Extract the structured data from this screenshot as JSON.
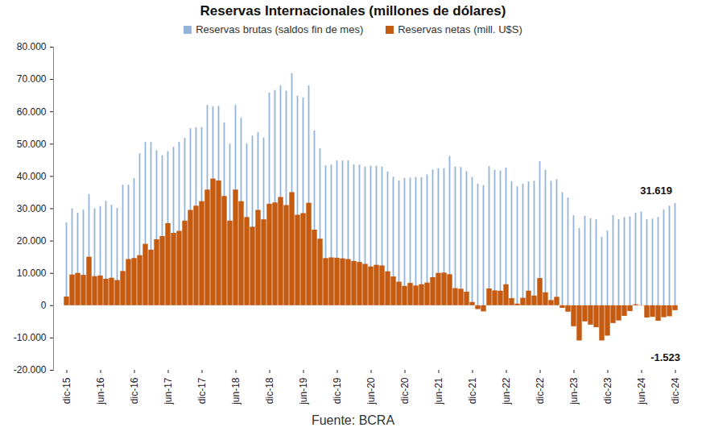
{
  "chart_data": {
    "type": "bar",
    "title": "Reservas Internacionales (millones de dólares)",
    "caption": "Fuente: BCRA",
    "categories": [
      "dic-15",
      null,
      null,
      null,
      null,
      null,
      "jun-16",
      null,
      null,
      null,
      null,
      null,
      "dic-16",
      null,
      null,
      null,
      null,
      null,
      "jun-17",
      null,
      null,
      null,
      null,
      null,
      "dic-17",
      null,
      null,
      null,
      null,
      null,
      "jun-18",
      null,
      null,
      null,
      null,
      null,
      "dic-18",
      null,
      null,
      null,
      null,
      null,
      "jun-19",
      null,
      null,
      null,
      null,
      null,
      "dic-19",
      null,
      null,
      null,
      null,
      null,
      "jun-20",
      null,
      null,
      null,
      null,
      null,
      "dic-20",
      null,
      null,
      null,
      null,
      null,
      "jun-21",
      null,
      null,
      null,
      null,
      null,
      "dic-21",
      null,
      null,
      null,
      null,
      null,
      "jun-22",
      null,
      null,
      null,
      null,
      null,
      "dic-22",
      null,
      null,
      null,
      null,
      null,
      "jun-23",
      null,
      null,
      null,
      null,
      null,
      "dic-23",
      null,
      null,
      null,
      null,
      null,
      "jun-24",
      null,
      null,
      null,
      null,
      null,
      "dic-24"
    ],
    "series": [
      {
        "name": "Reservas brutas (saldos fin de mes)",
        "color": "#95b3d7",
        "values": [
          25600,
          30000,
          28600,
          29600,
          34400,
          30000,
          30700,
          32300,
          31100,
          30100,
          37300,
          37300,
          39300,
          47000,
          50500,
          50500,
          48000,
          46400,
          47700,
          49000,
          50600,
          51800,
          54800,
          55100,
          55100,
          62000,
          61600,
          61700,
          56600,
          50000,
          62000,
          58000,
          50100,
          52500,
          53600,
          51900,
          65800,
          66600,
          68000,
          66400,
          71800,
          64800,
          64300,
          68000,
          54100,
          48600,
          43300,
          43500,
          44800,
          44800,
          44800,
          43600,
          43500,
          42900,
          43200,
          43200,
          42900,
          41400,
          39800,
          38600,
          39400,
          39500,
          39700,
          39600,
          40500,
          42000,
          42400,
          42400,
          46200,
          42900,
          42800,
          41500,
          39700,
          37600,
          37200,
          43100,
          41900,
          41700,
          42600,
          38400,
          36800,
          37600,
          38300,
          38500,
          44600,
          41900,
          38500,
          39000,
          35000,
          33300,
          27900,
          23900,
          27700,
          26900,
          26600,
          21200,
          23100,
          27900,
          26600,
          27300,
          27500,
          28600,
          29000,
          26600,
          26800,
          27300,
          29700,
          30800,
          31619
        ]
      },
      {
        "name": "Reservas netas (mill. U$S)",
        "color": "#c55a11",
        "values": [
          2700,
          9500,
          10000,
          9400,
          15000,
          9000,
          9200,
          8200,
          8500,
          7800,
          10600,
          14300,
          14600,
          15500,
          19000,
          17200,
          20400,
          21400,
          25400,
          22400,
          23000,
          26200,
          29500,
          30800,
          32200,
          35800,
          39200,
          38600,
          33800,
          26200,
          35800,
          32200,
          27300,
          24300,
          29500,
          26600,
          31400,
          31800,
          33500,
          31000,
          35000,
          28000,
          28500,
          31700,
          23400,
          20600,
          14600,
          14800,
          14700,
          14500,
          14300,
          13700,
          13400,
          12800,
          12000,
          12500,
          12300,
          10500,
          8900,
          7300,
          6000,
          6900,
          6100,
          6500,
          7000,
          8700,
          10000,
          10100,
          9600,
          5300,
          5100,
          4200,
          1000,
          -1200,
          -1900,
          5200,
          4600,
          4500,
          6500,
          2200,
          500,
          2300,
          4500,
          3000,
          8400,
          4000,
          1600,
          2600,
          -800,
          -2000,
          -6500,
          -10900,
          -5000,
          -6000,
          -6800,
          -10900,
          -9400,
          -5500,
          -4700,
          -3300,
          -1800,
          300,
          -100,
          -3800,
          -3600,
          -4800,
          -3700,
          -3400,
          -1523
        ]
      }
    ],
    "annotations": [
      {
        "text": "31.619",
        "x": "dic-24",
        "y": 31619
      },
      {
        "text": "-1.523",
        "x": "dic-24",
        "y": -1523
      }
    ],
    "ylim": [
      -20000,
      80000
    ],
    "yticks": [
      {
        "value": -20000,
        "label": "-20.000"
      },
      {
        "value": -10000,
        "label": "-10.000"
      },
      0,
      {
        "value": 10000,
        "label": "10.000"
      },
      {
        "value": 20000,
        "label": "20.000"
      },
      {
        "value": 30000,
        "label": "30.000"
      },
      {
        "value": 40000,
        "label": "40.000"
      },
      {
        "value": 50000,
        "label": "50.000"
      },
      {
        "value": 60000,
        "label": "60.000"
      },
      {
        "value": 70000,
        "label": "70.000"
      },
      {
        "value": 80000,
        "label": "80.000"
      }
    ],
    "grid": false,
    "legend": "top"
  }
}
